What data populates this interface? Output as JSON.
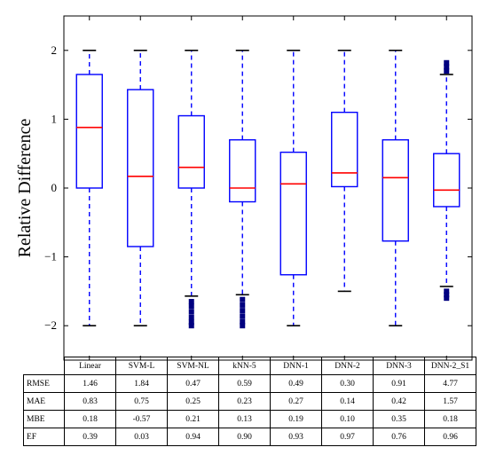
{
  "chart_data": {
    "type": "box",
    "ylabel": "Relative Difference",
    "ylim": [
      -2.5,
      2.5
    ],
    "yticks": [
      -2,
      -1,
      0,
      1,
      2
    ],
    "ytick_labels": [
      "−2",
      "−1",
      "0",
      "1",
      "2"
    ],
    "categories": [
      "Linear",
      "SVM-L",
      "SVM-NL",
      "kNN-5",
      "DNN-1",
      "DNN-2",
      "DNN-3",
      "DNN-2_S1"
    ],
    "boxes": [
      {
        "whisker_low": -2.0,
        "q1": 0.0,
        "median": 0.88,
        "q3": 1.65,
        "whisker_high": 2.0,
        "outliers": []
      },
      {
        "whisker_low": -2.0,
        "q1": -0.85,
        "median": 0.17,
        "q3": 1.43,
        "whisker_high": 2.0,
        "outliers": []
      },
      {
        "whisker_low": -1.57,
        "q1": 0.0,
        "median": 0.3,
        "q3": 1.05,
        "whisker_high": 2.0,
        "outliers": [
          -1.65,
          -1.72,
          -1.8,
          -1.88,
          -1.95,
          -2.0
        ]
      },
      {
        "whisker_low": -1.55,
        "q1": -0.2,
        "median": 0.0,
        "q3": 0.7,
        "whisker_high": 2.0,
        "outliers": [
          -1.62,
          -1.7,
          -1.78,
          -1.86,
          -1.94,
          -2.0
        ]
      },
      {
        "whisker_low": -2.0,
        "q1": -1.26,
        "median": 0.06,
        "q3": 0.52,
        "whisker_high": 2.0,
        "outliers": []
      },
      {
        "whisker_low": -1.5,
        "q1": 0.02,
        "median": 0.22,
        "q3": 1.1,
        "whisker_high": 2.0,
        "outliers": []
      },
      {
        "whisker_low": -2.0,
        "q1": -0.77,
        "median": 0.15,
        "q3": 0.7,
        "whisker_high": 2.0,
        "outliers": []
      },
      {
        "whisker_low": -1.43,
        "q1": -0.27,
        "median": -0.03,
        "q3": 0.5,
        "whisker_high": 1.65,
        "outliers": [
          1.7,
          1.76,
          1.82,
          -1.5,
          -1.55,
          -1.6
        ]
      }
    ],
    "box_color": "#0000ff",
    "median_color": "#ff0000",
    "outlier_color": "#000080",
    "grid": false
  },
  "table": {
    "header": [
      "Linear",
      "SVM-L",
      "SVM-NL",
      "kNN-5",
      "DNN-1",
      "DNN-2",
      "DNN-3",
      "DNN-2_S1"
    ],
    "rows": [
      {
        "label": "RMSE",
        "cells": [
          "1.46",
          "1.84",
          "0.47",
          "0.59",
          "0.49",
          "0.30",
          "0.91",
          "4.77"
        ]
      },
      {
        "label": "MAE",
        "cells": [
          "0.83",
          "0.75",
          "0.25",
          "0.23",
          "0.27",
          "0.14",
          "0.42",
          "1.57"
        ]
      },
      {
        "label": "MBE",
        "cells": [
          "0.18",
          "-0.57",
          "0.21",
          "0.13",
          "0.19",
          "0.10",
          "0.35",
          "0.18"
        ]
      },
      {
        "label": "EF",
        "cells": [
          "0.39",
          "0.03",
          "0.94",
          "0.90",
          "0.93",
          "0.97",
          "0.76",
          "0.96"
        ]
      }
    ]
  }
}
